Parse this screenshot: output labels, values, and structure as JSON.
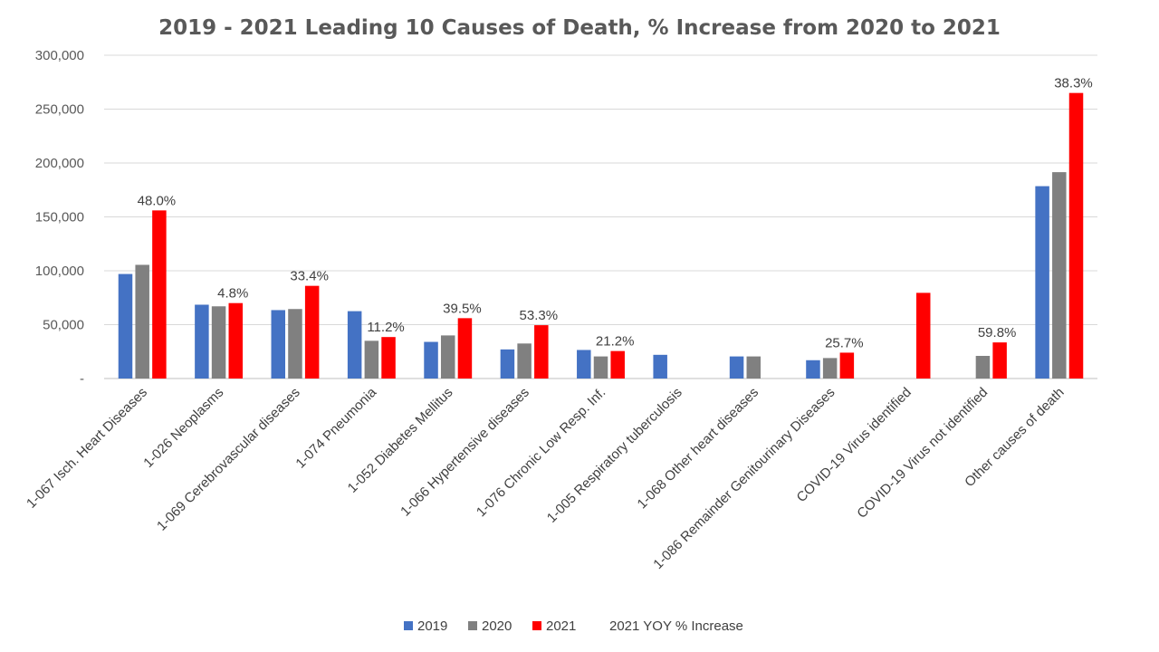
{
  "chart_data": {
    "type": "bar",
    "title": "2019 - 2021 Leading 10 Causes of Death, % Increase from 2020 to 2021",
    "xlabel": "",
    "ylabel": "",
    "ylim": [
      0,
      300000
    ],
    "yticks": [
      0,
      50000,
      100000,
      150000,
      200000,
      250000,
      300000
    ],
    "yticklabels": [
      "-",
      "50,000",
      "100,000",
      "150,000",
      "200,000",
      "250,000",
      "300,000"
    ],
    "grid": true,
    "legend_position": "bottom",
    "categories": [
      "1-067  Isch. Heart Diseases",
      "1-026  Neoplasms",
      "1-069  Cerebrovascular diseases",
      "1-074  Pneumonia",
      "1-052  Diabetes Mellitus",
      "1-066  Hypertensive diseases",
      "1-076  Chronic Low Resp. Inf.",
      "1-005  Respiratory tuberculosis",
      "1-068  Other heart diseases",
      "1-086  Remainder Genitourinary Diseases",
      "COVID-19 Virus identified",
      "COVID-19 Virus not identified",
      "Other causes of death"
    ],
    "series": [
      {
        "name": "2019",
        "color": "#4472c4",
        "values": [
          97000,
          68500,
          63500,
          62500,
          34000,
          27000,
          26500,
          22000,
          20500,
          17000,
          null,
          null,
          178500
        ]
      },
      {
        "name": "2020",
        "color": "#808080",
        "values": [
          105500,
          67000,
          64500,
          35000,
          40000,
          32500,
          20500,
          null,
          20500,
          19000,
          null,
          21000,
          191500
        ]
      },
      {
        "name": "2021",
        "color": "#ff0000",
        "values": [
          156000,
          70000,
          86000,
          38500,
          56000,
          49500,
          25500,
          null,
          null,
          24000,
          79500,
          33500,
          265000
        ]
      }
    ],
    "yoy_series_name": "2021 YOY % Increase",
    "yoy_labels": [
      "48.0%",
      "4.8%",
      "33.4%",
      "11.2%",
      "39.5%",
      "53.3%",
      "21.2%",
      "",
      "",
      "25.7%",
      "",
      "59.8%",
      "38.3%"
    ]
  }
}
